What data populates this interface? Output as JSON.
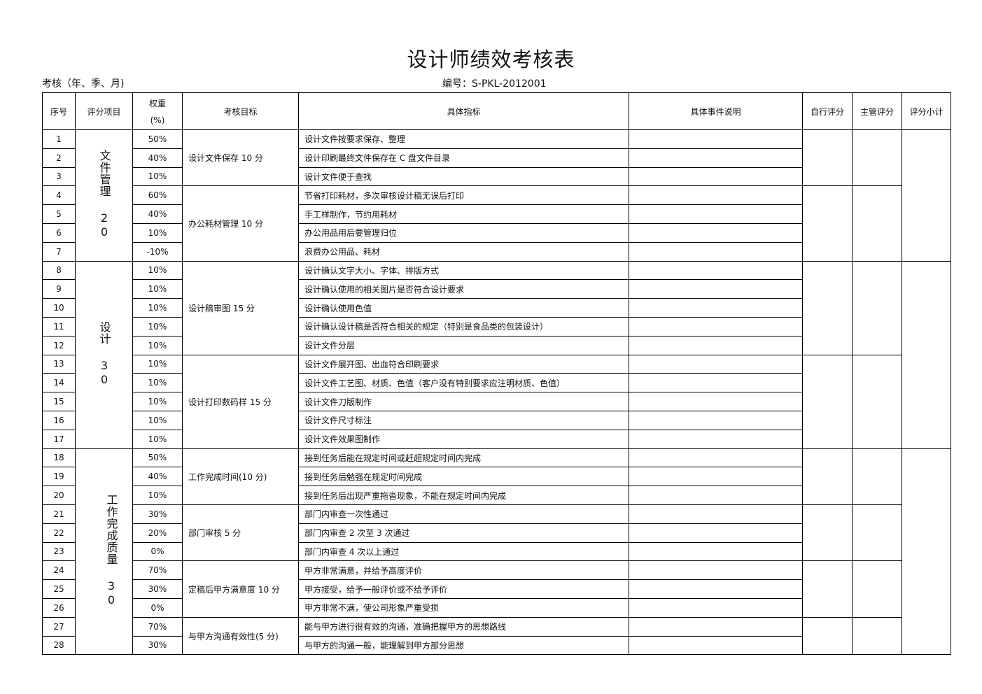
{
  "title": "设计师绩效考核表",
  "period_label": "考核（年、季、月)",
  "code_label": "编号：S-PKL-2012001",
  "headers": {
    "seq": "序号",
    "item": "评分项目",
    "weight_line1": "权重",
    "weight_line2": "(%)",
    "goal": "考核目标",
    "indicator": "具体指标",
    "event": "具体事件说明",
    "self_score": "自行评分",
    "mgr_score": "主管评分",
    "subtotal": "评分小计"
  },
  "categories": [
    "文件管理 20",
    "设计 30",
    "工作完成质量 30"
  ],
  "goals": [
    "设计文件保存 10 分",
    "办公耗材管理 10 分",
    "设计稿审图 15 分",
    "设计打印数码样 15 分",
    "工作完成时间(10 分)",
    "部门审核 5 分",
    "定稿后甲方满意度 10 分",
    "与甲方沟通有效性(5 分)"
  ],
  "rows": [
    {
      "seq": "1",
      "weight": "50%",
      "indicator": "设计文件按要求保存、整理"
    },
    {
      "seq": "2",
      "weight": "40%",
      "indicator": "设计印刷最终文件保存在 C 盘文件目录"
    },
    {
      "seq": "3",
      "weight": "10%",
      "indicator": "设计文件便于查找"
    },
    {
      "seq": "4",
      "weight": "60%",
      "indicator": "节省打印耗材，多次审核设计稿无误后打印"
    },
    {
      "seq": "5",
      "weight": "40%",
      "indicator": "手工样制作，节约用耗材"
    },
    {
      "seq": "6",
      "weight": "10%",
      "indicator": "办公用品用后要管理归位"
    },
    {
      "seq": "7",
      "weight": "-10%",
      "indicator": "浪费办公用品、耗材"
    },
    {
      "seq": "8",
      "weight": "10%",
      "indicator": "设计确认文字大小、字体、排版方式"
    },
    {
      "seq": "9",
      "weight": "10%",
      "indicator": "设计确认使用的相关图片是否符合设计要求"
    },
    {
      "seq": "10",
      "weight": "10%",
      "indicator": "设计确认使用色值"
    },
    {
      "seq": "11",
      "weight": "10%",
      "indicator": "设计确认设计稿是否符合相关的规定（特别是食品类的包装设计）"
    },
    {
      "seq": "12",
      "weight": "10%",
      "indicator": "设计文件分层"
    },
    {
      "seq": "13",
      "weight": "10%",
      "indicator": "设计文件展开图、出血符合印刷要求"
    },
    {
      "seq": "14",
      "weight": "10%",
      "indicator": "设计文件工艺图、材质、色值（客户没有特别要求应注明材质、色值）"
    },
    {
      "seq": "15",
      "weight": "10%",
      "indicator": "设计文件刀版制作"
    },
    {
      "seq": "16",
      "weight": "10%",
      "indicator": "设计文件尺寸标注"
    },
    {
      "seq": "17",
      "weight": "10%",
      "indicator": "设计文件效果图制作"
    },
    {
      "seq": "18",
      "weight": "50%",
      "indicator": "接到任务后能在规定时间或赶超规定时间内完成"
    },
    {
      "seq": "19",
      "weight": "40%",
      "indicator": "接到任务后勉强在规定时间完成"
    },
    {
      "seq": "20",
      "weight": "10%",
      "indicator": "接到任务后出现严重拖沓现象，不能在规定时间内完成"
    },
    {
      "seq": "21",
      "weight": "30%",
      "indicator": "部门内审查一次性通过"
    },
    {
      "seq": "22",
      "weight": "20%",
      "indicator": "部门内审查 2 次至 3 次通过"
    },
    {
      "seq": "23",
      "weight": "0%",
      "indicator": "部门内审查 4 次以上通过"
    },
    {
      "seq": "24",
      "weight": "70%",
      "indicator": "甲方非常满意，并给予高度评价"
    },
    {
      "seq": "25",
      "weight": "30%",
      "indicator": "甲方接受，给予一般评价或不给予评价"
    },
    {
      "seq": "26",
      "weight": "0%",
      "indicator": "甲方非常不满，使公司形象严重受损"
    },
    {
      "seq": "27",
      "weight": "70%",
      "indicator": "能与甲方进行很有效的沟通，准确把握甲方的思想路线"
    },
    {
      "seq": "28",
      "weight": "30%",
      "indicator": "与甲方的沟通一般，能理解到甲方部分思想"
    }
  ]
}
